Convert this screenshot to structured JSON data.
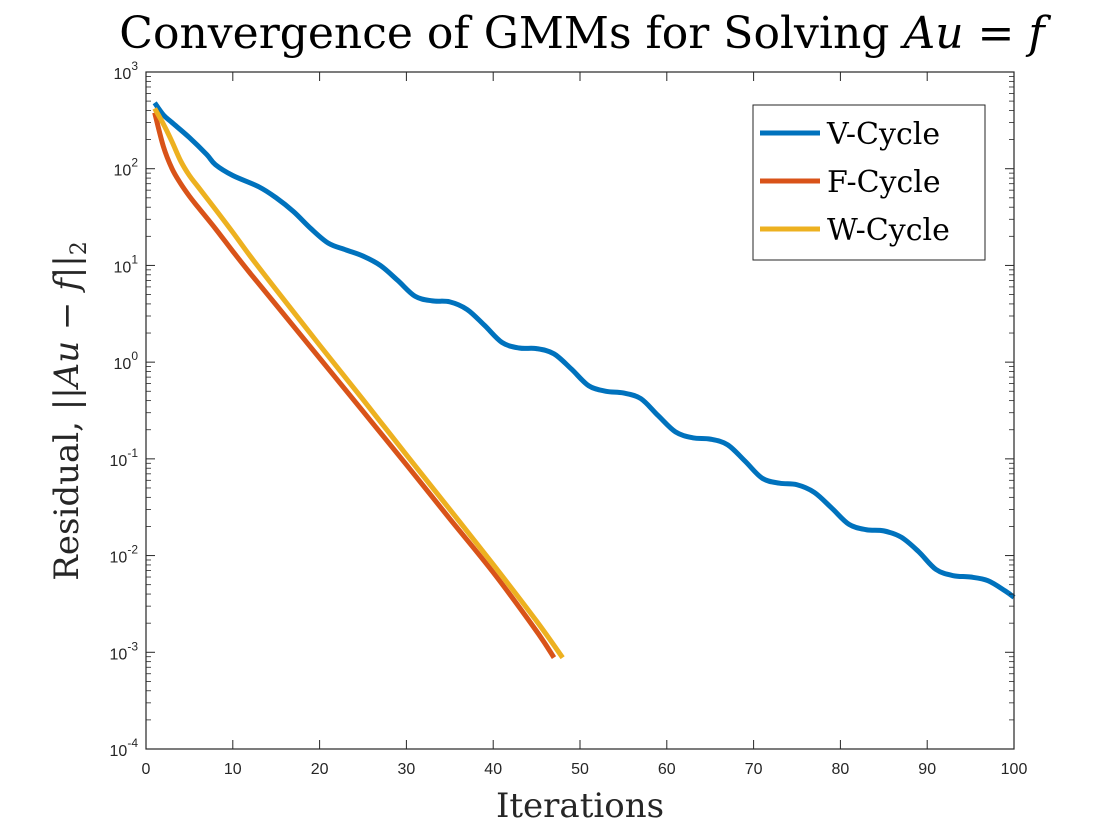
{
  "chart_data": {
    "type": "line",
    "title": "Convergence of GMMs for Solving Au = f",
    "xlabel": "Iterations",
    "ylabel": "Residual, ||Au − f||₂",
    "yscale": "log",
    "xlim": [
      0,
      100
    ],
    "ylim": [
      0.0001,
      1000
    ],
    "x_ticks": [
      0,
      10,
      20,
      30,
      40,
      50,
      60,
      70,
      80,
      90,
      100
    ],
    "y_ticks": [
      {
        "value": 1000,
        "base": "10",
        "exp": "3"
      },
      {
        "value": 100,
        "base": "10",
        "exp": "2"
      },
      {
        "value": 10,
        "base": "10",
        "exp": "1"
      },
      {
        "value": 1,
        "base": "10",
        "exp": "0"
      },
      {
        "value": 0.1,
        "base": "10",
        "exp": "-1"
      },
      {
        "value": 0.01,
        "base": "10",
        "exp": "-2"
      },
      {
        "value": 0.001,
        "base": "10",
        "exp": "-3"
      },
      {
        "value": 0.0001,
        "base": "10",
        "exp": "-4"
      }
    ],
    "legend_position": "top-right",
    "grid": false,
    "series": [
      {
        "name": "V-Cycle",
        "color": "#0072BD",
        "points": [
          [
            1,
            480
          ],
          [
            2,
            360
          ],
          [
            3,
            300
          ],
          [
            5,
            210
          ],
          [
            7,
            140
          ],
          [
            8,
            110
          ],
          [
            10,
            85
          ],
          [
            13,
            65
          ],
          [
            15,
            50
          ],
          [
            17,
            36
          ],
          [
            19,
            24
          ],
          [
            21,
            17
          ],
          [
            23,
            14.5
          ],
          [
            25,
            12.5
          ],
          [
            27,
            10
          ],
          [
            29,
            7
          ],
          [
            31,
            4.8
          ],
          [
            33,
            4.3
          ],
          [
            35,
            4.2
          ],
          [
            37,
            3.5
          ],
          [
            39,
            2.4
          ],
          [
            41,
            1.6
          ],
          [
            43,
            1.4
          ],
          [
            45,
            1.38
          ],
          [
            47,
            1.22
          ],
          [
            49,
            0.85
          ],
          [
            51,
            0.57
          ],
          [
            53,
            0.5
          ],
          [
            55,
            0.48
          ],
          [
            57,
            0.42
          ],
          [
            59,
            0.28
          ],
          [
            61,
            0.19
          ],
          [
            63,
            0.165
          ],
          [
            65,
            0.16
          ],
          [
            67,
            0.14
          ],
          [
            69,
            0.095
          ],
          [
            71,
            0.063
          ],
          [
            73,
            0.056
          ],
          [
            75,
            0.054
          ],
          [
            77,
            0.045
          ],
          [
            79,
            0.031
          ],
          [
            81,
            0.021
          ],
          [
            83,
            0.0185
          ],
          [
            85,
            0.018
          ],
          [
            87,
            0.0155
          ],
          [
            89,
            0.011
          ],
          [
            91,
            0.0072
          ],
          [
            93,
            0.0062
          ],
          [
            95,
            0.006
          ],
          [
            97,
            0.0055
          ],
          [
            99,
            0.0043
          ],
          [
            100,
            0.0037
          ]
        ]
      },
      {
        "name": "F-Cycle",
        "color": "#D95319",
        "points": [
          [
            1,
            380
          ],
          [
            2,
            170
          ],
          [
            3,
            100
          ],
          [
            4,
            70
          ],
          [
            5,
            52
          ],
          [
            6,
            40
          ],
          [
            8,
            24
          ],
          [
            10,
            14
          ],
          [
            12,
            8.3
          ],
          [
            15,
            3.9
          ],
          [
            20,
            1.1
          ],
          [
            25,
            0.31
          ],
          [
            30,
            0.087
          ],
          [
            35,
            0.024
          ],
          [
            40,
            0.0067
          ],
          [
            45,
            0.00165
          ],
          [
            47,
            0.00088
          ]
        ]
      },
      {
        "name": "W-Cycle",
        "color": "#EDB120",
        "points": [
          [
            1,
            420
          ],
          [
            2,
            290
          ],
          [
            3,
            190
          ],
          [
            4,
            120
          ],
          [
            5,
            85
          ],
          [
            6,
            65
          ],
          [
            8,
            38
          ],
          [
            10,
            22
          ],
          [
            12,
            12.5
          ],
          [
            15,
            5.6
          ],
          [
            20,
            1.5
          ],
          [
            25,
            0.41
          ],
          [
            30,
            0.11
          ],
          [
            35,
            0.03
          ],
          [
            40,
            0.0081
          ],
          [
            45,
            0.0021
          ],
          [
            48,
            0.00088
          ]
        ]
      }
    ]
  }
}
